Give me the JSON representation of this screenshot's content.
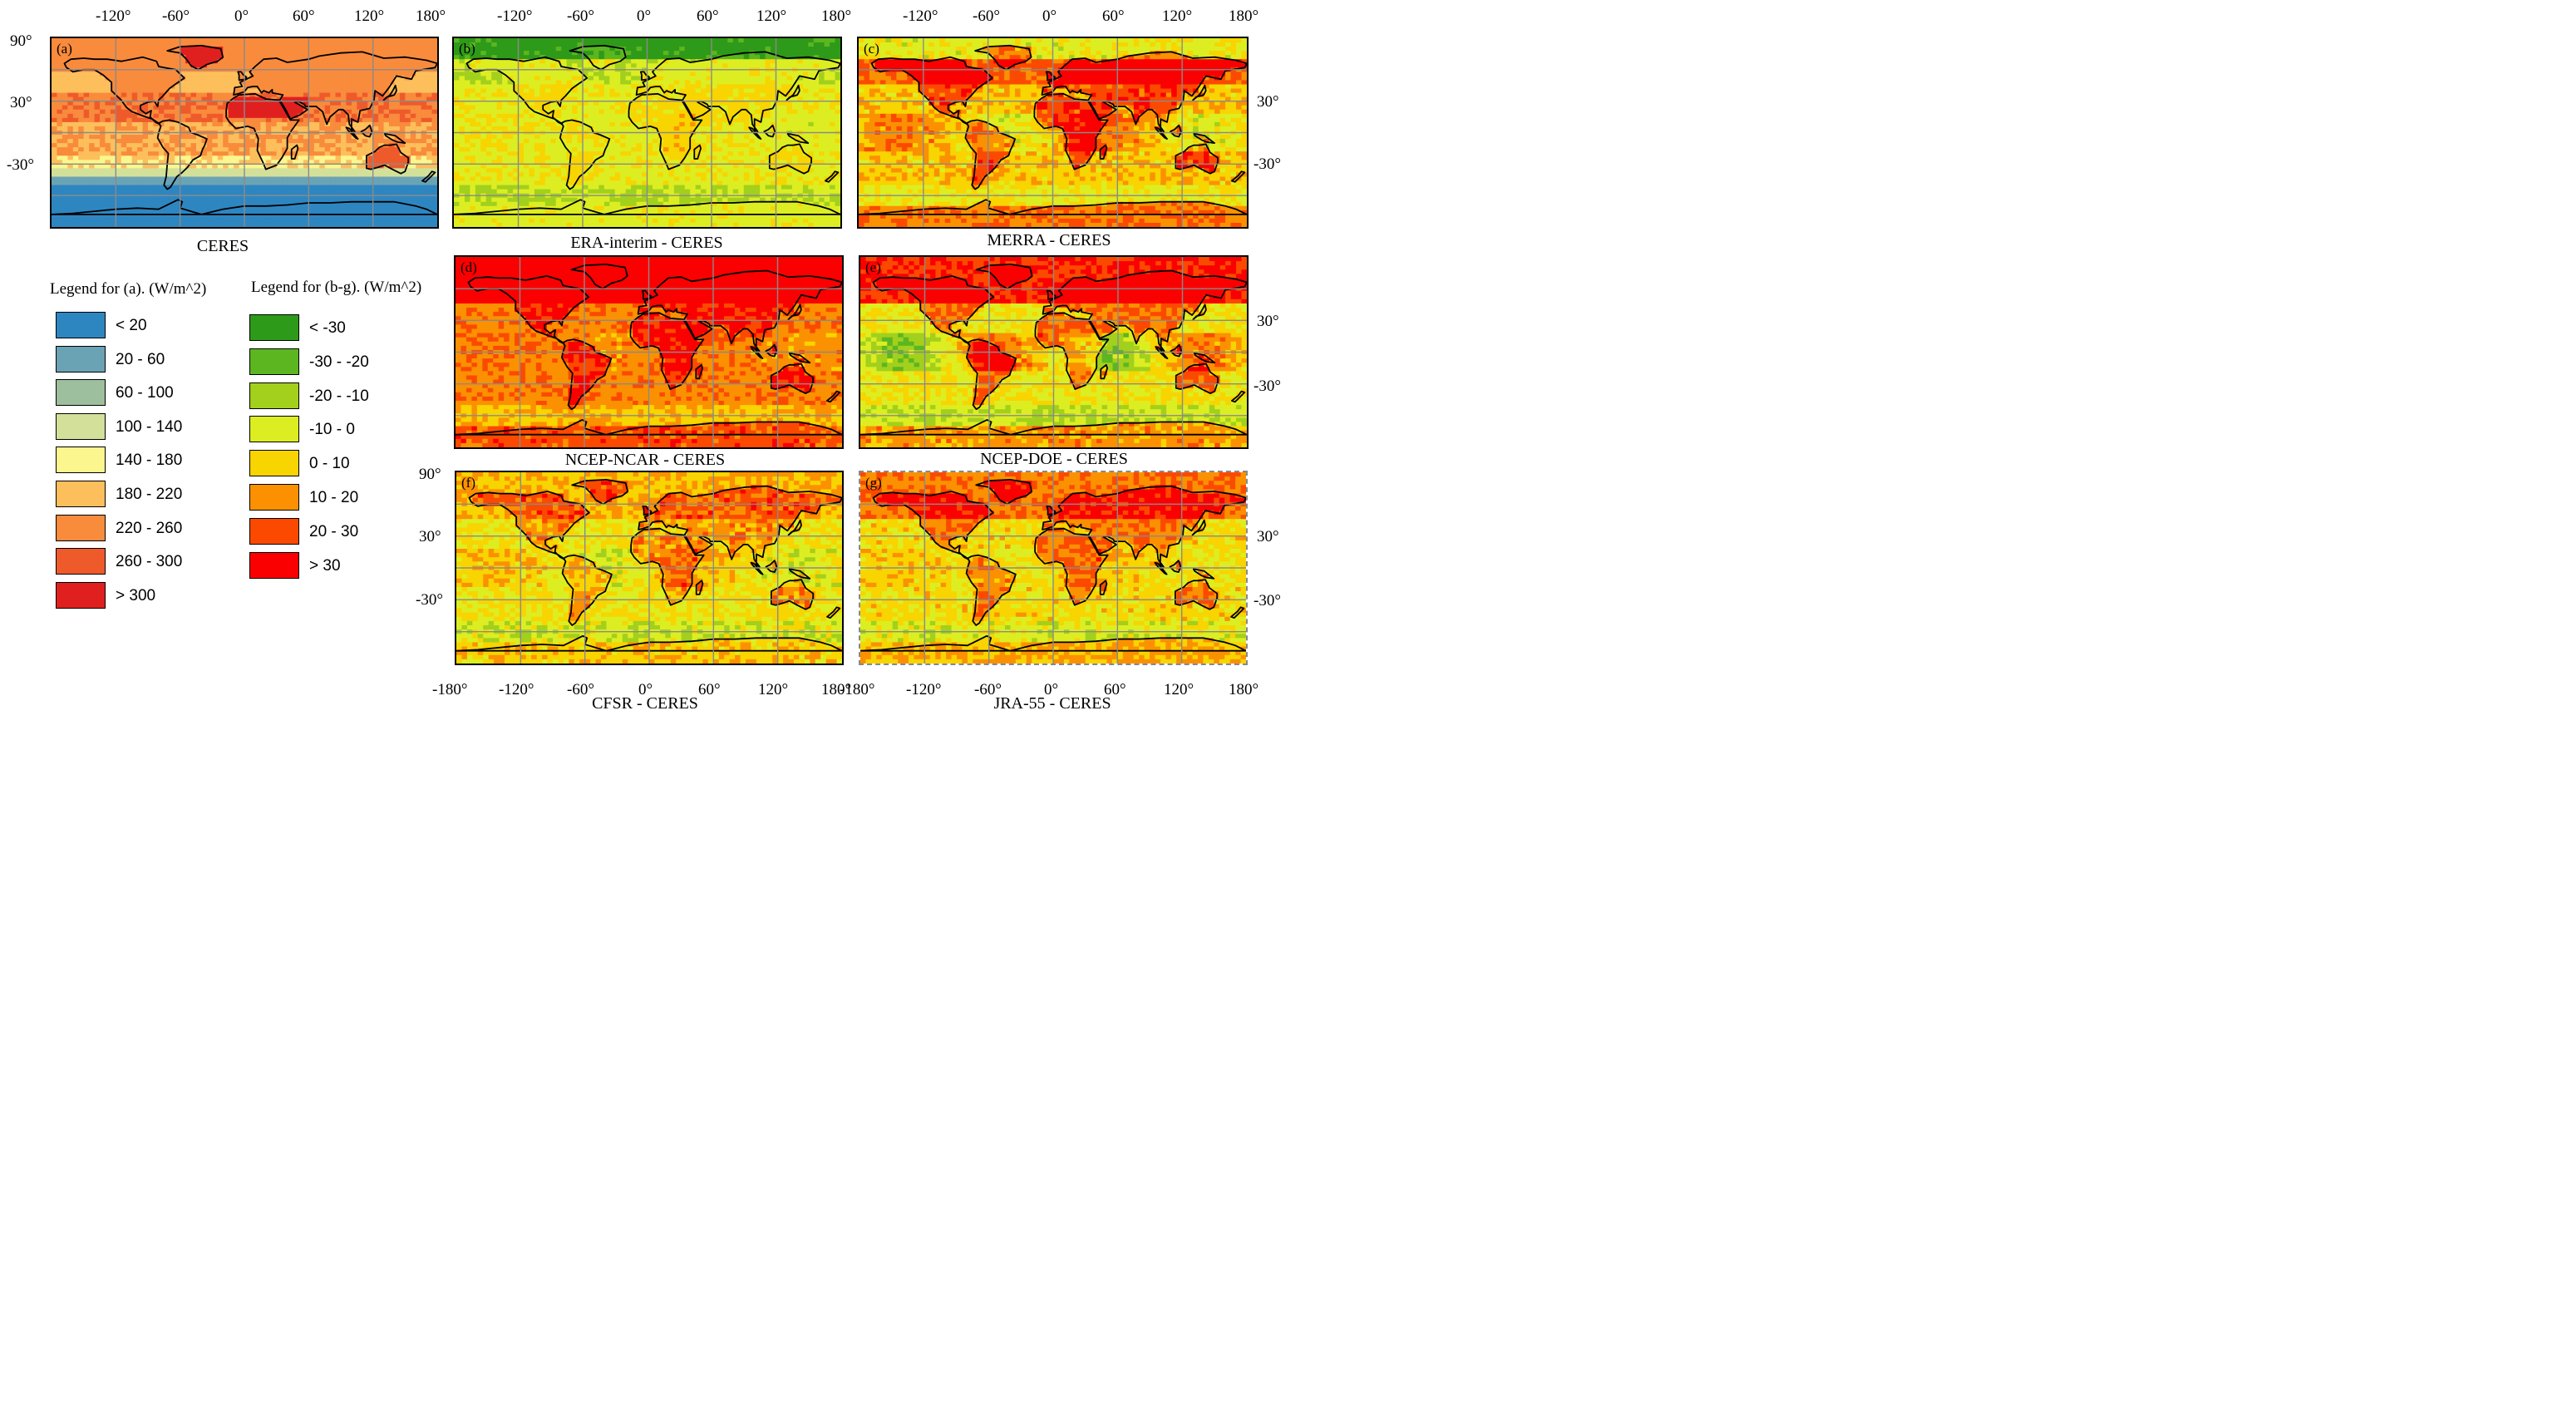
{
  "axes": {
    "lon_ticks": [
      "-180°",
      "-120°",
      "-60°",
      "0°",
      "60°",
      "120°",
      "180°"
    ],
    "lat_ticks": [
      "90°",
      "30°",
      "-30°"
    ]
  },
  "panels": [
    {
      "id": "a",
      "label": "(a)",
      "title": "CERES",
      "type": "absolute"
    },
    {
      "id": "b",
      "label": "(b)",
      "title": "ERA-interim - CERES",
      "type": "difference"
    },
    {
      "id": "c",
      "label": "(c)",
      "title": "MERRA - CERES",
      "type": "difference"
    },
    {
      "id": "d",
      "label": "(d)",
      "title": "NCEP-NCAR - CERES",
      "type": "difference"
    },
    {
      "id": "e",
      "label": "(e)",
      "title": "NCEP-DOE - CERES",
      "type": "difference"
    },
    {
      "id": "f",
      "label": "(f)",
      "title": "CFSR - CERES",
      "type": "difference"
    },
    {
      "id": "g",
      "label": "(g)",
      "title": "JRA-55 - CERES",
      "type": "difference"
    }
  ],
  "legend_a": {
    "title": "Legend for (a). (W/m^2)",
    "items": [
      {
        "label": "< 20",
        "color": "#2e86c1"
      },
      {
        "label": "20 - 60",
        "color": "#6aa3b4"
      },
      {
        "label": "60 - 100",
        "color": "#9dbf9d"
      },
      {
        "label": "100 - 140",
        "color": "#d3e09a"
      },
      {
        "label": "140 - 180",
        "color": "#fbf68d"
      },
      {
        "label": "180 - 220",
        "color": "#fdbf5b"
      },
      {
        "label": "220 - 260",
        "color": "#f98b3c"
      },
      {
        "label": "260 - 300",
        "color": "#ef5a2b"
      },
      {
        "label": "> 300",
        "color": "#e0201f"
      }
    ]
  },
  "legend_bg": {
    "title": "Legend for (b-g). (W/m^2)",
    "items": [
      {
        "label": "< -30",
        "color": "#2e9a19"
      },
      {
        "label": "-30 - -20",
        "color": "#5cb620"
      },
      {
        "label": "-20 - -10",
        "color": "#a2d01c"
      },
      {
        "label": "-10 - 0",
        "color": "#dcee22"
      },
      {
        "label": "0 - 10",
        "color": "#f8d400"
      },
      {
        "label": "10 - 20",
        "color": "#fb9100"
      },
      {
        "label": "20 - 30",
        "color": "#fb4a00"
      },
      {
        "label": "> 30",
        "color": "#fb0000"
      }
    ]
  }
}
